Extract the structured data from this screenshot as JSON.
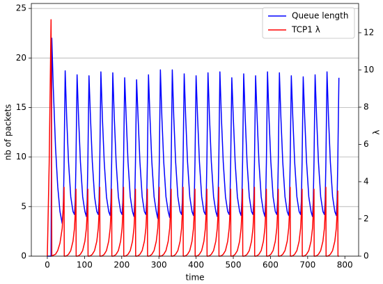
{
  "chart_data": {
    "type": "line",
    "x_label": "time",
    "y_label": "nb of packets",
    "y2_label": "λ",
    "x": [
      0,
      5,
      10,
      11,
      12,
      16,
      22,
      28,
      34,
      40,
      43,
      45,
      45.5,
      48,
      52,
      57,
      63,
      69,
      73,
      75,
      77,
      77.5,
      80,
      84,
      89,
      95,
      101,
      105,
      107,
      109,
      109.5,
      112,
      116,
      121,
      127,
      133,
      137,
      139,
      141,
      141.5,
      144,
      148,
      153,
      159,
      165,
      169,
      171,
      173,
      173.5,
      176,
      180,
      185,
      191,
      197,
      201,
      203,
      205,
      205.5,
      208,
      212,
      217,
      223,
      229,
      233,
      235,
      237,
      237.5,
      240,
      244,
      249,
      255,
      261,
      265,
      267,
      269,
      269.5,
      272,
      276,
      281,
      287,
      293,
      297,
      299,
      301,
      301.5,
      304,
      308,
      313,
      319,
      325,
      329,
      331,
      333,
      333.5,
      336,
      340,
      345,
      351,
      357,
      361,
      363,
      365,
      365.5,
      368,
      372,
      377,
      383,
      389,
      393,
      395,
      397,
      397.5,
      400,
      404,
      409,
      415,
      421,
      425,
      427,
      429,
      429.5,
      432,
      436,
      441,
      447,
      453,
      457,
      459,
      461,
      461.5,
      464,
      468,
      473,
      479,
      485,
      489,
      491,
      493,
      493.5,
      496,
      500,
      505,
      511,
      517,
      521,
      523,
      525,
      525.5,
      528,
      532,
      537,
      543,
      549,
      553,
      555,
      557,
      557.5,
      560,
      564,
      569,
      575,
      581,
      585,
      587,
      589,
      589.5,
      592,
      596,
      601,
      607,
      613,
      617,
      619,
      621,
      621.5,
      624,
      628,
      633,
      639,
      645,
      649,
      651,
      653,
      653.5,
      656,
      660,
      665,
      671,
      677,
      681,
      683,
      685,
      685.5,
      688,
      692,
      697,
      703,
      709,
      713,
      715,
      717,
      717.5,
      720,
      724,
      729,
      735,
      741,
      745,
      747,
      749,
      749.5,
      752,
      756,
      761,
      767,
      773,
      777,
      779,
      781,
      781.5,
      784
    ],
    "series": [
      {
        "name": "Queue length",
        "color": "#0000ff",
        "values": [
          0,
          0,
          0,
          10,
          22,
          17,
          11,
          7,
          4.5,
          3.3,
          5,
          9,
          11,
          18.7,
          14,
          9.5,
          6,
          4.5,
          4.2,
          5.5,
          9.5,
          11,
          18.3,
          14,
          9.5,
          6,
          4.5,
          4.0,
          5.5,
          9.5,
          11,
          18.2,
          14,
          9.5,
          6,
          4.5,
          4.2,
          5.5,
          9.5,
          11,
          18.6,
          14,
          9.5,
          6,
          4.5,
          4.1,
          5.5,
          9.5,
          11,
          18.5,
          14,
          9.5,
          6,
          4.5,
          4.2,
          5.5,
          9.5,
          11,
          18.0,
          14,
          9.5,
          6,
          4.5,
          4.0,
          5.5,
          9.5,
          11,
          17.8,
          14,
          9.5,
          6,
          4.5,
          4.2,
          5.5,
          9.5,
          11,
          18.3,
          14,
          9.5,
          6,
          4.5,
          3.8,
          5.5,
          9.5,
          11,
          18.8,
          14,
          9.5,
          6,
          4.5,
          3.9,
          5.5,
          9.5,
          11,
          18.8,
          14,
          9.5,
          6,
          4.5,
          4.2,
          5.5,
          9.5,
          11,
          18.4,
          14,
          9.5,
          6,
          4.5,
          4.1,
          5.5,
          9.5,
          11,
          18.2,
          14,
          9.5,
          6,
          4.5,
          4.2,
          5.5,
          9.5,
          11,
          18.5,
          14,
          9.5,
          6,
          4.5,
          4.0,
          5.5,
          9.5,
          11,
          18.6,
          14,
          9.5,
          6,
          4.5,
          4.2,
          5.5,
          9.5,
          11,
          18.0,
          14,
          9.5,
          6,
          4.5,
          4.1,
          5.5,
          9.5,
          11,
          18.4,
          14,
          9.5,
          6,
          4.5,
          4.2,
          5.5,
          9.5,
          11,
          18.2,
          14,
          9.5,
          6,
          4.5,
          4.0,
          5.5,
          9.5,
          11,
          18.6,
          14,
          9.5,
          6,
          4.5,
          4.2,
          5.5,
          9.5,
          11,
          18.5,
          14,
          9.5,
          6,
          4.5,
          4.1,
          5.5,
          9.5,
          11,
          18.2,
          14,
          9.5,
          6,
          4.5,
          4.2,
          5.5,
          9.5,
          11,
          18.1,
          14,
          9.5,
          6,
          4.5,
          4.0,
          5.5,
          9.5,
          11,
          18.3,
          14,
          9.5,
          6,
          4.5,
          4.2,
          5.5,
          9.5,
          11,
          18.6,
          14,
          9.5,
          6,
          4.5,
          4.1,
          5.5,
          9.5,
          11,
          18.0
        ]
      },
      {
        "name": "TCP1 λ",
        "color": "#ff0000",
        "axis": "y2",
        "values": [
          0,
          5,
          12.7,
          8,
          0,
          0.05,
          0.1,
          0.3,
          0.7,
          1.5,
          2.6,
          3.7,
          0,
          0,
          0.02,
          0.1,
          0.3,
          0.8,
          1.5,
          2.3,
          3.6,
          0,
          0,
          0.02,
          0.1,
          0.3,
          0.8,
          1.5,
          2.3,
          3.6,
          0,
          0,
          0.02,
          0.1,
          0.3,
          0.8,
          1.5,
          2.3,
          3.7,
          0,
          0,
          0.02,
          0.1,
          0.3,
          0.8,
          1.5,
          2.3,
          3.6,
          0,
          0,
          0.02,
          0.1,
          0.3,
          0.8,
          1.5,
          2.3,
          3.7,
          0,
          0,
          0.02,
          0.1,
          0.3,
          0.8,
          1.5,
          2.3,
          3.6,
          0,
          0,
          0.02,
          0.1,
          0.3,
          0.8,
          1.5,
          2.3,
          3.6,
          0,
          0,
          0.02,
          0.1,
          0.3,
          0.8,
          1.5,
          2.3,
          3.7,
          0,
          0,
          0.02,
          0.1,
          0.3,
          0.8,
          1.5,
          2.3,
          3.6,
          0,
          0,
          0.02,
          0.1,
          0.3,
          0.8,
          1.5,
          2.3,
          3.7,
          0,
          0,
          0.02,
          0.1,
          0.3,
          0.8,
          1.5,
          2.3,
          3.6,
          0,
          0,
          0.02,
          0.1,
          0.3,
          0.8,
          1.5,
          2.3,
          3.6,
          0,
          0,
          0.02,
          0.1,
          0.3,
          0.8,
          1.5,
          2.3,
          3.7,
          0,
          0,
          0.02,
          0.1,
          0.3,
          0.8,
          1.5,
          2.3,
          3.6,
          0,
          0,
          0.02,
          0.1,
          0.3,
          0.8,
          1.5,
          2.3,
          3.6,
          0,
          0,
          0.02,
          0.1,
          0.3,
          0.8,
          1.5,
          2.3,
          3.7,
          0,
          0,
          0.02,
          0.1,
          0.3,
          0.8,
          1.5,
          2.3,
          3.6,
          0,
          0,
          0.02,
          0.1,
          0.3,
          0.8,
          1.5,
          2.3,
          3.6,
          0,
          0,
          0.02,
          0.1,
          0.3,
          0.8,
          1.5,
          2.3,
          3.7,
          0,
          0,
          0.02,
          0.1,
          0.3,
          0.8,
          1.5,
          2.3,
          3.6,
          0,
          0,
          0.02,
          0.1,
          0.3,
          0.8,
          1.5,
          2.3,
          3.6,
          0,
          0,
          0.02,
          0.1,
          0.3,
          0.8,
          1.5,
          2.3,
          3.7,
          0,
          0,
          0.02,
          0.1,
          0.3,
          0.8,
          1.5,
          2.3,
          3.5,
          0,
          0
        ]
      }
    ],
    "xlim": [
      -43,
      837
    ],
    "xticks": [
      0,
      100,
      200,
      300,
      400,
      500,
      600,
      700,
      800
    ],
    "ylim": [
      0,
      25.5
    ],
    "yticks": [
      0,
      5,
      10,
      15,
      20,
      25
    ],
    "y2lim": [
      0,
      13.57
    ],
    "y2ticks": [
      0,
      2,
      4,
      6,
      8,
      10,
      12
    ],
    "grid": true,
    "legend": "upper right"
  }
}
